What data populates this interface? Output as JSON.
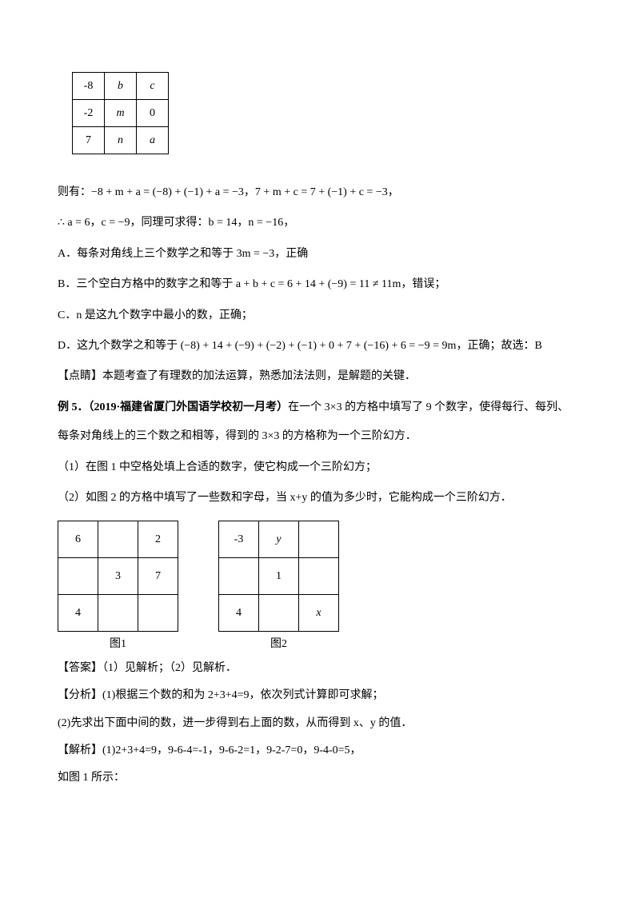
{
  "top_table": {
    "rows": [
      [
        "-8",
        "b",
        "c"
      ],
      [
        "-2",
        "m",
        "0"
      ],
      [
        "7",
        "n",
        "a"
      ]
    ],
    "italic_cells": [
      "b",
      "c",
      "m",
      "n",
      "a"
    ]
  },
  "lines": {
    "l1": "则有：−8 + m + a = (−8) + (−1) + a = −3，7 + m + c = 7 + (−1) + c = −3，",
    "l2": "∴ a = 6，c = −9，同理可求得：b = 14，n = −16，",
    "l3": "A．每条对角线上三个数学之和等于 3m = −3，正确",
    "l4": "B．三个空白方格中的数字之和等于 a + b + c = 6 + 14 + (−9) = 11 ≠ 11m，错误；",
    "l5": "C．n 是这九个数字中最小的数，正确；",
    "l6": "D．这九个数学之和等于 (−8) + 14 + (−9) + (−2) + (−1) + 0 + 7 + (−16) + 6 = −9 = 9m，正确；故选：B",
    "l7": "【点睛】本题考查了有理数的加法运算，熟悉加法法则，是解题的关键．",
    "l8a": "例 5．（2019·福建省厦门外国语学校初一月考）",
    "l8b": "在一个 3×3 的方格中填写了 9 个数字，使得每行、每列、每条对角线上的三个数之和相等，得到的 3×3 的方格称为一个三阶幻方．",
    "l9": "（1）在图 1 中空格处填上合适的数字，使它构成一个三阶幻方；",
    "l10": "（2）如图 2 的方格中填写了一些数和字母，当 x+y 的值为多少时，它能构成一个三阶幻方．"
  },
  "grid1": {
    "rows": [
      [
        "6",
        "",
        "2"
      ],
      [
        "",
        "3",
        "7"
      ],
      [
        "4",
        "",
        ""
      ]
    ],
    "caption": "图1"
  },
  "grid2": {
    "rows": [
      [
        "-3",
        "y",
        ""
      ],
      [
        "",
        "1",
        ""
      ],
      [
        "4",
        "",
        "x"
      ]
    ],
    "caption": "图2",
    "italic_cells": [
      "y",
      "x"
    ]
  },
  "answers": {
    "a1": "【答案】（1）见解析；（2）见解析．",
    "a2": "【分析】(1)根据三个数的和为 2+3+4=9，依次列式计算即可求解；",
    "a3": "(2)先求出下面中间的数，进一步得到右上面的数，从而得到 x、y 的值．",
    "a4": "【解析】(1)2+3+4=9，9-6-4=-1，9-6-2=1，9-2-7=0，9-4-0=5，",
    "a5": "如图 1 所示："
  },
  "colors": {
    "text": "#000000",
    "border": "#000000",
    "bg": "#ffffff"
  }
}
